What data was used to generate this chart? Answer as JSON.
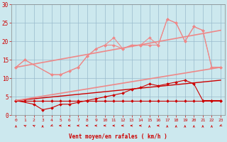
{
  "background_color": "#cce8ee",
  "grid_color": "#99bbcc",
  "xlabel": "Vent moyen/en rafales ( km/h )",
  "xlabel_color": "#cc0000",
  "tick_color": "#cc0000",
  "xlim": [
    -0.5,
    23.5
  ],
  "ylim": [
    0,
    30
  ],
  "xticks": [
    0,
    1,
    2,
    3,
    4,
    5,
    6,
    7,
    8,
    9,
    10,
    11,
    12,
    13,
    14,
    15,
    16,
    17,
    18,
    19,
    20,
    21,
    22,
    23
  ],
  "yticks": [
    0,
    5,
    10,
    15,
    20,
    25,
    30
  ],
  "series": [
    {
      "x": [
        0,
        1,
        2,
        3,
        4,
        5,
        6,
        7,
        8,
        9,
        10,
        11,
        12,
        13,
        14,
        15,
        16,
        17,
        18,
        19,
        20,
        21,
        22,
        23
      ],
      "y": [
        4,
        4,
        4,
        4,
        4,
        4,
        4,
        4,
        4,
        4,
        4,
        4,
        4,
        4,
        4,
        4,
        4,
        4,
        4,
        4,
        4,
        4,
        4,
        4
      ],
      "color": "#cc0000",
      "lw": 0.8,
      "marker": "D",
      "ms": 2.0
    },
    {
      "x": [
        0,
        2,
        3,
        4,
        5,
        6,
        7,
        8,
        9,
        10,
        11,
        12,
        13,
        14,
        15,
        16,
        17,
        18,
        19,
        20,
        21,
        22,
        23
      ],
      "y": [
        4,
        3,
        1.5,
        2,
        3,
        3,
        3.5,
        4,
        4.5,
        5,
        5.5,
        6,
        7,
        7.5,
        8.5,
        8,
        8.5,
        9,
        9.5,
        8.5,
        4,
        4,
        4
      ],
      "color": "#cc0000",
      "lw": 0.8,
      "marker": "D",
      "ms": 2.0
    },
    {
      "x": [
        0,
        23
      ],
      "y": [
        4,
        9.5
      ],
      "color": "#cc0000",
      "lw": 1.0,
      "marker": null,
      "ms": 0
    },
    {
      "x": [
        0,
        1,
        4,
        5,
        6,
        7,
        8,
        9,
        10,
        11,
        12,
        13,
        14,
        15,
        16,
        17,
        18,
        19,
        20,
        21,
        22,
        23
      ],
      "y": [
        13,
        15,
        11,
        11,
        12,
        13,
        16,
        18,
        19,
        21,
        18,
        19,
        19,
        21,
        19,
        26,
        25,
        20,
        24,
        23,
        13,
        13
      ],
      "color": "#ee8888",
      "lw": 0.8,
      "marker": "D",
      "ms": 2.0
    },
    {
      "x": [
        0,
        1,
        4,
        5,
        6,
        7,
        8,
        9,
        10,
        11,
        12,
        13,
        14,
        15,
        16,
        17,
        18,
        19,
        20,
        21,
        22,
        23
      ],
      "y": [
        13,
        15,
        11,
        11,
        12,
        13,
        16,
        18,
        19,
        19,
        18,
        19,
        19,
        19,
        19,
        26,
        25,
        20,
        24,
        23,
        13,
        13
      ],
      "color": "#ee8888",
      "lw": 0.8,
      "marker": "D",
      "ms": 2.0
    },
    {
      "x": [
        0,
        23
      ],
      "y": [
        13,
        23
      ],
      "color": "#ee8888",
      "lw": 1.2,
      "marker": null,
      "ms": 0
    },
    {
      "x": [
        0,
        23
      ],
      "y": [
        4,
        13
      ],
      "color": "#ee8888",
      "lw": 1.2,
      "marker": null,
      "ms": 0
    }
  ],
  "wind_dirs": [
    180,
    225,
    225,
    180,
    315,
    270,
    270,
    270,
    270,
    270,
    270,
    270,
    270,
    270,
    270,
    180,
    270,
    180,
    180,
    180,
    180,
    180,
    180,
    315
  ]
}
